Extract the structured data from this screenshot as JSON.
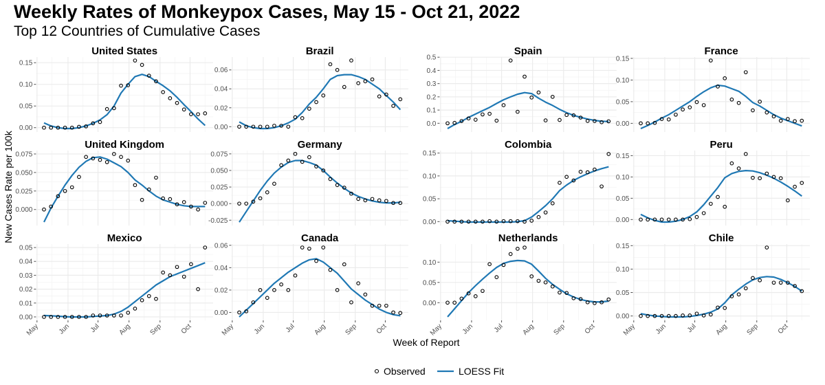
{
  "title": "Weekly Rates of Monkeypox Cases, May 15 - Oct 21, 2022",
  "subtitle": "Top 12 Countries of Cumulative Cases",
  "chart_data": {
    "type": "scatter",
    "facets": "4 columns x 3 rows, free y scales",
    "xlabel": "Week of Report",
    "ylabel": "New Cases Rate per 100k",
    "x_ticks": [
      {
        "date": "2022-05-01",
        "label": "May"
      },
      {
        "date": "2022-06-01",
        "label": "Jun"
      },
      {
        "date": "2022-07-01",
        "label": "Jul"
      },
      {
        "date": "2022-08-01",
        "label": "Aug"
      },
      {
        "date": "2022-09-01",
        "label": "Sep"
      },
      {
        "date": "2022-10-01",
        "label": "Oct"
      }
    ],
    "xlim": [
      "2022-04-30",
      "2022-10-24"
    ],
    "grid": true,
    "legend": {
      "position": "bottom",
      "entries": [
        {
          "label": "Observed",
          "marker": "open-circle"
        },
        {
          "label": "LOESS Fit",
          "marker": "line"
        }
      ]
    },
    "colors": {
      "observed": "#000000",
      "loess": "#1f78b4",
      "grid": "#ebebeb"
    },
    "weeks": [
      "2022-05-08",
      "2022-05-15",
      "2022-05-22",
      "2022-05-29",
      "2022-06-05",
      "2022-06-12",
      "2022-06-19",
      "2022-06-26",
      "2022-07-03",
      "2022-07-10",
      "2022-07-17",
      "2022-07-24",
      "2022-07-31",
      "2022-08-07",
      "2022-08-14",
      "2022-08-21",
      "2022-08-28",
      "2022-09-04",
      "2022-09-11",
      "2022-09-18",
      "2022-09-25",
      "2022-10-02",
      "2022-10-09",
      "2022-10-16"
    ],
    "panels": [
      {
        "title": "United States",
        "ylim": [
          -0.01,
          0.163
        ],
        "yticks": [
          {
            "v": 0,
            "label": "0.00"
          },
          {
            "v": 0.05,
            "label": "0.05"
          },
          {
            "v": 0.1,
            "label": "0.10"
          },
          {
            "v": 0.15,
            "label": "0.15"
          }
        ],
        "observed": [
          0,
          0,
          0,
          0,
          0,
          0.002,
          0.003,
          0.01,
          0.013,
          0.043,
          0.045,
          0.097,
          0.098,
          0.155,
          0.145,
          0.12,
          0.107,
          0.082,
          0.068,
          0.057,
          0.042,
          0.031,
          0.031,
          0.033
        ],
        "loess": [
          0.011,
          0.004,
          0.0,
          -0.002,
          -0.002,
          0.0,
          0.004,
          0.01,
          0.018,
          0.03,
          0.05,
          0.08,
          0.1,
          0.118,
          0.123,
          0.118,
          0.107,
          0.097,
          0.085,
          0.07,
          0.053,
          0.037,
          0.02,
          0.005
        ]
      },
      {
        "title": "Brazil",
        "ylim": [
          -0.0056,
          0.0736
        ],
        "yticks": [
          {
            "v": 0,
            "label": "0.00"
          },
          {
            "v": 0.02,
            "label": "0.02"
          },
          {
            "v": 0.04,
            "label": "0.04"
          },
          {
            "v": 0.06,
            "label": "0.06"
          }
        ],
        "observed": [
          0,
          0,
          0,
          0,
          0,
          0.001,
          0.001,
          0,
          0.01,
          0.009,
          0.019,
          0.026,
          0.033,
          0.066,
          0.06,
          0.042,
          0.07,
          0.046,
          0.048,
          0.05,
          0.032,
          0.034,
          0.022,
          0.029
        ],
        "loess": [
          0.005,
          0.001,
          -0.001,
          -0.002,
          -0.002,
          -0.001,
          0.001,
          0.004,
          0.008,
          0.015,
          0.024,
          0.031,
          0.04,
          0.05,
          0.054,
          0.055,
          0.055,
          0.053,
          0.05,
          0.045,
          0.04,
          0.033,
          0.026,
          0.018
        ]
      },
      {
        "title": "Spain",
        "ylim": [
          -0.066,
          0.501
        ],
        "yticks": [
          {
            "v": 0,
            "label": "0.0"
          },
          {
            "v": 0.1,
            "label": "0.1"
          },
          {
            "v": 0.2,
            "label": "0.2"
          },
          {
            "v": 0.3,
            "label": "0.3"
          },
          {
            "v": 0.4,
            "label": "0.4"
          },
          {
            "v": 0.5,
            "label": "0.5"
          }
        ],
        "observed": [
          0,
          0.003,
          0.017,
          0.037,
          0.027,
          0.067,
          0.072,
          0.02,
          0.137,
          0.475,
          0.087,
          0.353,
          0.195,
          0.233,
          0.022,
          0.2,
          0.025,
          0.063,
          0.06,
          0.043,
          0.018,
          0.017,
          0.008,
          0.015
        ],
        "loess": [
          -0.04,
          -0.01,
          0.015,
          0.045,
          0.07,
          0.095,
          0.12,
          0.15,
          0.178,
          0.2,
          0.22,
          0.232,
          0.225,
          0.19,
          0.16,
          0.135,
          0.105,
          0.08,
          0.06,
          0.045,
          0.032,
          0.022,
          0.015,
          0.013
        ]
      },
      {
        "title": "France",
        "ylim": [
          -0.02,
          0.153
        ],
        "yticks": [
          {
            "v": 0,
            "label": "0.00"
          },
          {
            "v": 0.05,
            "label": "0.05"
          },
          {
            "v": 0.1,
            "label": "0.10"
          },
          {
            "v": 0.15,
            "label": "0.15"
          }
        ],
        "observed": [
          0,
          0,
          0.001,
          0.01,
          0.009,
          0.02,
          0.032,
          0.037,
          0.049,
          0.042,
          0.145,
          0.085,
          0.104,
          0.055,
          0.047,
          0.118,
          0.03,
          0.05,
          0.025,
          0.016,
          0.006,
          0.01,
          0.005,
          0.006
        ],
        "loess": [
          -0.012,
          -0.005,
          0.003,
          0.012,
          0.02,
          0.03,
          0.04,
          0.05,
          0.062,
          0.073,
          0.082,
          0.088,
          0.086,
          0.08,
          0.074,
          0.062,
          0.048,
          0.04,
          0.03,
          0.02,
          0.012,
          0.006,
          0.0,
          -0.006
        ]
      },
      {
        "title": "United Kingdom",
        "ylim": [
          -0.0216,
          0.0796
        ],
        "yticks": [
          {
            "v": 0,
            "label": "0.000"
          },
          {
            "v": 0.025,
            "label": "0.025"
          },
          {
            "v": 0.05,
            "label": "0.050"
          },
          {
            "v": 0.075,
            "label": "0.075"
          }
        ],
        "observed": [
          0,
          0.004,
          0.018,
          0.025,
          0.03,
          0.044,
          0.071,
          0.069,
          0.067,
          0.064,
          0.075,
          0.071,
          0.066,
          0.033,
          0.013,
          0.027,
          0.043,
          0.015,
          0.014,
          0.007,
          0.01,
          0.004,
          0,
          0.009
        ],
        "loess": [
          -0.017,
          0.002,
          0.018,
          0.033,
          0.046,
          0.057,
          0.065,
          0.07,
          0.071,
          0.068,
          0.063,
          0.058,
          0.05,
          0.04,
          0.033,
          0.025,
          0.018,
          0.013,
          0.01,
          0.007,
          0.005,
          0.004,
          0.004,
          0.004
        ]
      },
      {
        "title": "Germany",
        "ylim": [
          -0.033,
          0.08
        ],
        "yticks": [
          {
            "v": -0.025,
            "label": "-0.025"
          },
          {
            "v": 0,
            "label": "0.000"
          },
          {
            "v": 0.025,
            "label": "0.025"
          },
          {
            "v": 0.05,
            "label": "0.050"
          },
          {
            "v": 0.075,
            "label": "0.075"
          }
        ],
        "observed": [
          0,
          0,
          0.003,
          0.008,
          0.017,
          0.03,
          0.058,
          0.065,
          0.075,
          0.063,
          0.07,
          0.056,
          0.05,
          0.037,
          0.028,
          0.024,
          0.015,
          0.007,
          0.005,
          0.007,
          0.005,
          0.004,
          0.001,
          0.001
        ],
        "loess": [
          -0.028,
          -0.012,
          0.004,
          0.02,
          0.034,
          0.046,
          0.055,
          0.062,
          0.065,
          0.065,
          0.062,
          0.058,
          0.05,
          0.04,
          0.031,
          0.023,
          0.016,
          0.011,
          0.007,
          0.004,
          0.002,
          0.001,
          0.001,
          0.002
        ]
      },
      {
        "title": "Colombia",
        "ylim": [
          -0.0085,
          0.1555
        ],
        "yticks": [
          {
            "v": 0,
            "label": "0.00"
          },
          {
            "v": 0.05,
            "label": "0.05"
          },
          {
            "v": 0.1,
            "label": "0.10"
          },
          {
            "v": 0.15,
            "label": "0.15"
          }
        ],
        "observed": [
          0,
          0,
          0,
          0,
          0,
          0,
          0.001,
          0,
          0.001,
          0.001,
          0.001,
          0,
          0.002,
          0.01,
          0.02,
          0.04,
          0.085,
          0.098,
          0.09,
          0.109,
          0.108,
          0.114,
          0.077,
          0.148
        ],
        "loess": [
          0.002,
          0.001,
          0,
          -0.001,
          -0.001,
          -0.001,
          -0.001,
          -0.001,
          -0.001,
          -0.001,
          0,
          0.002,
          0.01,
          0.022,
          0.035,
          0.05,
          0.068,
          0.08,
          0.09,
          0.098,
          0.105,
          0.111,
          0.116,
          0.12
        ]
      },
      {
        "title": "Peru",
        "ylim": [
          -0.014,
          0.162
        ],
        "yticks": [
          {
            "v": 0,
            "label": "0.00"
          },
          {
            "v": 0.05,
            "label": "0.05"
          },
          {
            "v": 0.1,
            "label": "0.10"
          },
          {
            "v": 0.15,
            "label": "0.15"
          }
        ],
        "observed": [
          0,
          0,
          0,
          0,
          0,
          0,
          0,
          0.001,
          0.006,
          0.015,
          0.037,
          0.053,
          0.03,
          0.132,
          0.12,
          0.154,
          0.098,
          0.097,
          0.108,
          0.1,
          0.097,
          0.045,
          0.077,
          0.086
        ],
        "loess": [
          0.012,
          0.004,
          -0.002,
          -0.006,
          -0.006,
          -0.004,
          0,
          0.007,
          0.018,
          0.035,
          0.055,
          0.075,
          0.098,
          0.108,
          0.113,
          0.115,
          0.114,
          0.11,
          0.104,
          0.097,
          0.088,
          0.078,
          0.067,
          0.055
        ]
      },
      {
        "title": "Mexico",
        "ylim": [
          -0.0025,
          0.0525
        ],
        "yticks": [
          {
            "v": 0,
            "label": "0.00"
          },
          {
            "v": 0.01,
            "label": "0.01"
          },
          {
            "v": 0.02,
            "label": "0.02"
          },
          {
            "v": 0.03,
            "label": "0.03"
          },
          {
            "v": 0.04,
            "label": "0.04"
          },
          {
            "v": 0.05,
            "label": "0.05"
          }
        ],
        "observed": [
          0,
          0,
          0,
          0,
          0,
          0,
          0,
          0.001,
          0.001,
          0.001,
          0.001,
          0.001,
          0.003,
          0.006,
          0.012,
          0.015,
          0.013,
          0.032,
          0.03,
          0.036,
          0.029,
          0.038,
          0.02,
          0.05
        ],
        "loess": [
          0.001,
          0.0008,
          0.0005,
          0.0002,
          0,
          0,
          0,
          0.0003,
          0.0006,
          0.001,
          0.002,
          0.004,
          0.007,
          0.011,
          0.015,
          0.019,
          0.023,
          0.026,
          0.029,
          0.031,
          0.033,
          0.035,
          0.037,
          0.039
        ]
      },
      {
        "title": "Canada",
        "ylim": [
          -0.0071,
          0.0611
        ],
        "yticks": [
          {
            "v": 0,
            "label": "0.00"
          },
          {
            "v": 0.02,
            "label": "0.02"
          },
          {
            "v": 0.04,
            "label": "0.04"
          },
          {
            "v": 0.06,
            "label": "0.06"
          }
        ],
        "observed": [
          0,
          0.001,
          0.009,
          0.02,
          0.013,
          0.02,
          0.025,
          0.02,
          0.033,
          0.058,
          0.057,
          0.046,
          0.058,
          0.038,
          0.02,
          0.043,
          0.009,
          0.026,
          0.016,
          0.006,
          0.006,
          0.006,
          0,
          -0.0005
        ],
        "loess": [
          -0.004,
          0.002,
          0.008,
          0.014,
          0.02,
          0.026,
          0.031,
          0.036,
          0.04,
          0.044,
          0.047,
          0.048,
          0.045,
          0.04,
          0.035,
          0.028,
          0.021,
          0.016,
          0.011,
          0.007,
          0.003,
          0,
          -0.002,
          -0.003
        ]
      },
      {
        "title": "Netherlands",
        "ylim": [
          -0.0436,
          0.1446
        ],
        "yticks": [
          {
            "v": 0,
            "label": "0.00"
          },
          {
            "v": 0.05,
            "label": "0.05"
          },
          {
            "v": 0.1,
            "label": "0.10"
          }
        ],
        "observed": [
          0,
          0,
          0.01,
          0.023,
          0.016,
          0.029,
          0.095,
          0.063,
          0.093,
          0.12,
          0.133,
          0.136,
          0.065,
          0.054,
          0.05,
          0.04,
          0.025,
          0.024,
          0.011,
          0.009,
          0.001,
          -0.001,
          0.001,
          0.008
        ],
        "loess": [
          -0.035,
          -0.015,
          0.005,
          0.025,
          0.042,
          0.058,
          0.073,
          0.087,
          0.097,
          0.102,
          0.104,
          0.103,
          0.095,
          0.078,
          0.06,
          0.045,
          0.033,
          0.022,
          0.014,
          0.008,
          0.004,
          0.002,
          0.002,
          0.004
        ]
      },
      {
        "title": "Chile",
        "ylim": [
          -0.0094,
          0.1534
        ],
        "yticks": [
          {
            "v": 0,
            "label": "0.00"
          },
          {
            "v": 0.05,
            "label": "0.05"
          },
          {
            "v": 0.1,
            "label": "0.10"
          },
          {
            "v": 0.15,
            "label": "0.15"
          }
        ],
        "observed": [
          0,
          0,
          0,
          0,
          0,
          0,
          0.001,
          0.001,
          0.005,
          0.001,
          0.003,
          0.018,
          0.017,
          0.042,
          0.046,
          0.059,
          0.081,
          0.076,
          0.146,
          0.071,
          0.071,
          0.071,
          0.064,
          0.053
        ],
        "loess": [
          0.005,
          0.002,
          0,
          -0.001,
          -0.002,
          -0.002,
          -0.002,
          -0.001,
          0.001,
          0.004,
          0.008,
          0.015,
          0.028,
          0.045,
          0.057,
          0.068,
          0.077,
          0.082,
          0.084,
          0.083,
          0.078,
          0.071,
          0.063,
          0.053
        ]
      }
    ]
  }
}
